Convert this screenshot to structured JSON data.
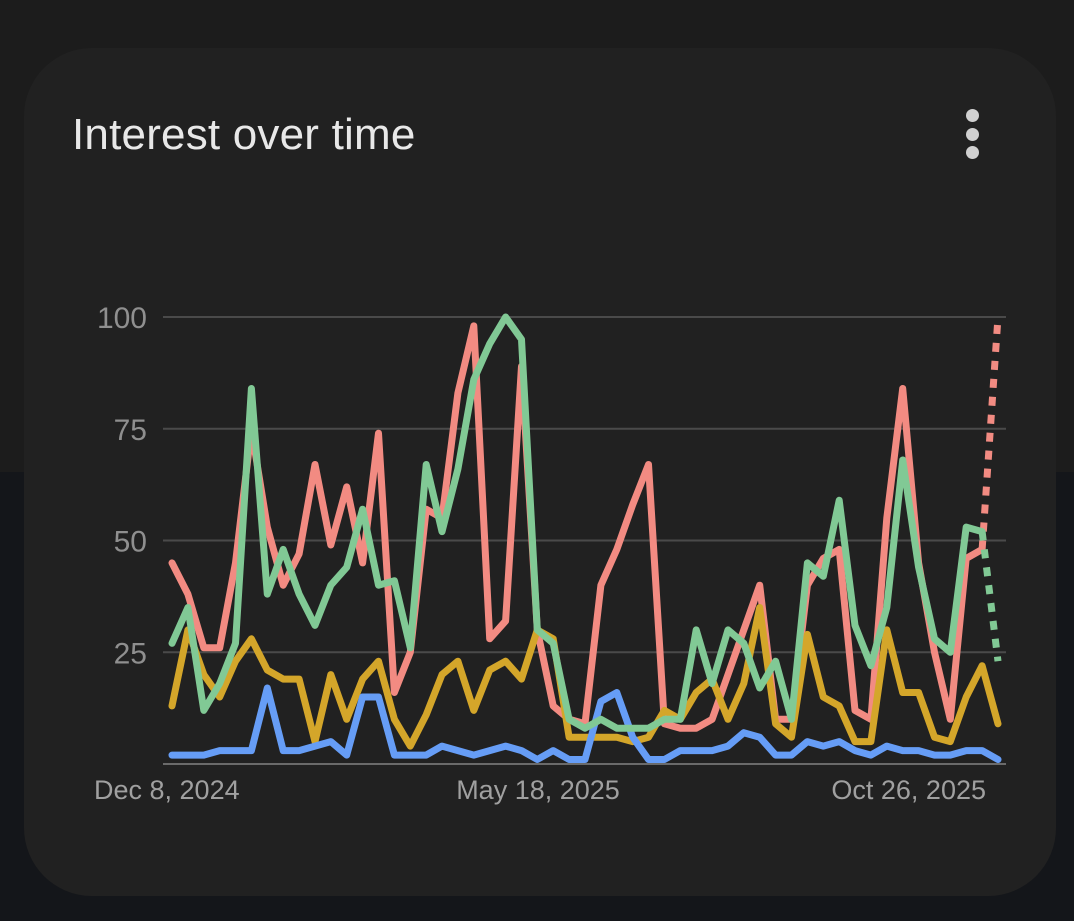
{
  "card": {
    "title": "Interest over time",
    "menu_icon": "more-vert-icon"
  },
  "chart_data": {
    "type": "line",
    "title": "Interest over time",
    "ylim": [
      0,
      100
    ],
    "yticks": [
      25,
      50,
      75,
      100
    ],
    "yticklabels": [
      "25",
      "50",
      "75",
      "100"
    ],
    "xticklabels": [
      "Dec 8, 2024",
      "May 18, 2025",
      "Oct 26, 2025"
    ],
    "xtick_index": [
      0,
      23,
      46
    ],
    "grid": true,
    "series": [
      {
        "color": "#f28b82",
        "values": [
          45,
          38,
          26,
          26,
          45,
          75,
          53,
          40,
          47,
          67,
          49,
          62,
          45,
          74,
          16,
          25,
          57,
          55,
          83,
          98,
          28,
          32,
          89,
          30,
          13,
          10,
          9,
          40,
          48,
          58,
          67,
          9,
          8,
          8,
          10,
          20,
          30,
          40,
          10,
          10,
          40,
          46,
          48,
          12,
          10,
          55,
          84,
          45,
          25,
          10,
          46,
          48
        ],
        "partial_last": 100
      },
      {
        "color": "#fdd663",
        "values": [
          13,
          30,
          20,
          15,
          23,
          28,
          21,
          19,
          19,
          5,
          20,
          10,
          19,
          23,
          10,
          4,
          11,
          20,
          23,
          12,
          21,
          23,
          19,
          30,
          28,
          6,
          6,
          6,
          6,
          5,
          6,
          12,
          10,
          16,
          19,
          10,
          18,
          35,
          9,
          6,
          29,
          15,
          13,
          5,
          5,
          30,
          16,
          16,
          6,
          5,
          15,
          22,
          9
        ],
        "stroke_override": "#d4a62a"
      },
      {
        "color": "#81c995",
        "values": [
          27,
          35,
          12,
          18,
          27,
          84,
          38,
          48,
          38,
          31,
          40,
          44,
          57,
          40,
          41,
          26,
          67,
          52,
          66,
          86,
          94,
          100,
          95,
          30,
          27,
          10,
          8,
          10,
          8,
          8,
          8,
          10,
          10,
          30,
          18,
          30,
          27,
          17,
          23,
          10,
          45,
          42,
          59,
          31,
          22,
          35,
          68,
          44,
          28,
          25,
          53,
          52
        ],
        "partial_last": 23
      },
      {
        "color": "#669df6",
        "values": [
          2,
          2,
          2,
          3,
          3,
          3,
          17,
          3,
          3,
          4,
          5,
          2,
          15,
          15,
          2,
          2,
          2,
          4,
          3,
          2,
          3,
          4,
          3,
          1,
          3,
          1,
          1,
          14,
          16,
          6,
          1,
          1,
          3,
          3,
          3,
          4,
          7,
          6,
          2,
          2,
          5,
          4,
          5,
          3,
          2,
          4,
          3,
          3,
          2,
          2,
          3,
          3,
          1
        ]
      }
    ]
  }
}
